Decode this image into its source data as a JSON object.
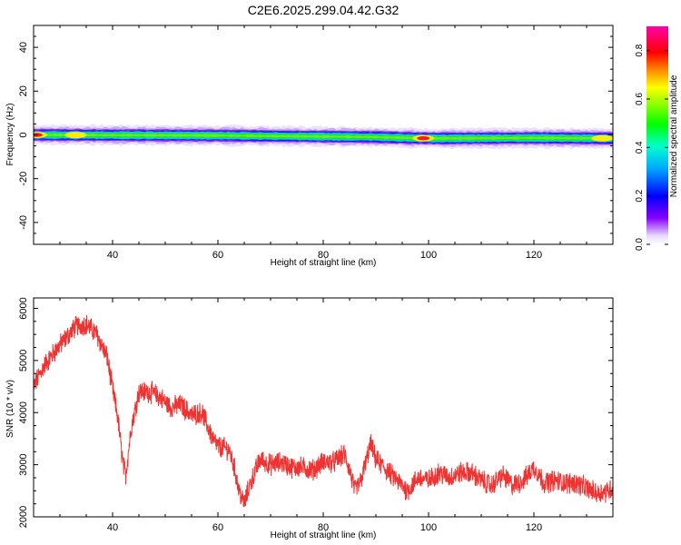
{
  "title": "C2E6.2025.299.04.42.G32",
  "chart_data": [
    {
      "type": "heatmap",
      "xlabel": "Height of straight line (km)",
      "ylabel": "Frequency (Hz)",
      "xlim": [
        25,
        135
      ],
      "ylim": [
        -50,
        50
      ],
      "xticks": [
        40,
        60,
        80,
        100,
        120
      ],
      "yticks": [
        40,
        20,
        0,
        -20,
        -40
      ],
      "colorbar": {
        "label": "Normalized spectral amplitude",
        "range": [
          0.0,
          0.9
        ],
        "ticks": [
          "0.0",
          "0.2",
          "0.4",
          "0.6",
          "0.8"
        ],
        "colormap": "rainbow (purple-blue-cyan-green-yellow-red-magenta)"
      },
      "ridge": {
        "description": "narrow band of energy centred near 0 Hz across all heights",
        "center_hz": [
          {
            "x": 25,
            "y": 0.0
          },
          {
            "x": 60,
            "y": -0.3
          },
          {
            "x": 90,
            "y": -1.0
          },
          {
            "x": 98,
            "y": -1.5
          },
          {
            "x": 102,
            "y": -1.6
          },
          {
            "x": 120,
            "y": -1.4
          },
          {
            "x": 135,
            "y": -1.6
          }
        ],
        "core_halfwidth_hz": 1.5,
        "outer_halfwidth_hz": 4.5,
        "peaks": [
          {
            "x": 25.5,
            "amplitude": 0.85
          },
          {
            "x": 33,
            "amplitude": 0.65
          },
          {
            "x": 99,
            "amplitude": 0.8
          },
          {
            "x": 133,
            "amplitude": 0.7
          }
        ]
      }
    },
    {
      "type": "line",
      "xlabel": "Height of straight line (km)",
      "ylabel": "SNR (10 * v/v)",
      "xlim": [
        25,
        135
      ],
      "ylim": [
        2000,
        6200
      ],
      "xticks": [
        40,
        60,
        80,
        100,
        120
      ],
      "yticks": [
        2000,
        3000,
        4000,
        5000,
        6000
      ],
      "series": [
        {
          "color": "#ee3333",
          "trend": [
            [
              25,
              4500
            ],
            [
              27,
              4900
            ],
            [
              30,
              5300
            ],
            [
              33,
              5650
            ],
            [
              35,
              5700
            ],
            [
              37,
              5500
            ],
            [
              39,
              5050
            ],
            [
              40,
              4450
            ],
            [
              41,
              3900
            ],
            [
              42,
              3000
            ],
            [
              42.5,
              2800
            ],
            [
              43.5,
              3700
            ],
            [
              45,
              4400
            ],
            [
              47,
              4400
            ],
            [
              49,
              4300
            ],
            [
              51,
              4100
            ],
            [
              53,
              4150
            ],
            [
              55,
              3950
            ],
            [
              57,
              4000
            ],
            [
              59,
              3500
            ],
            [
              60,
              3350
            ],
            [
              62,
              3300
            ],
            [
              63,
              3000
            ],
            [
              64,
              2500
            ],
            [
              65,
              2250
            ],
            [
              66,
              2600
            ],
            [
              68,
              3100
            ],
            [
              70,
              3000
            ],
            [
              72,
              3050
            ],
            [
              74,
              2950
            ],
            [
              76,
              2950
            ],
            [
              78,
              2900
            ],
            [
              80,
              3050
            ],
            [
              82,
              3050
            ],
            [
              84,
              3200
            ],
            [
              85,
              2900
            ],
            [
              86,
              2500
            ],
            [
              87,
              2650
            ],
            [
              88,
              3000
            ],
            [
              89,
              3400
            ],
            [
              90,
              3100
            ],
            [
              92,
              2900
            ],
            [
              94,
              2700
            ],
            [
              96,
              2500
            ],
            [
              98,
              2750
            ],
            [
              100,
              2700
            ],
            [
              102,
              2850
            ],
            [
              104,
              2750
            ],
            [
              106,
              2850
            ],
            [
              108,
              2850
            ],
            [
              110,
              2700
            ],
            [
              112,
              2600
            ],
            [
              114,
              2800
            ],
            [
              116,
              2600
            ],
            [
              118,
              2700
            ],
            [
              120,
              2950
            ],
            [
              122,
              2650
            ],
            [
              124,
              2700
            ],
            [
              126,
              2650
            ],
            [
              128,
              2650
            ],
            [
              130,
              2550
            ],
            [
              132,
              2450
            ],
            [
              134,
              2500
            ],
            [
              135,
              2550
            ]
          ],
          "noise_amplitude": 180
        }
      ]
    }
  ]
}
